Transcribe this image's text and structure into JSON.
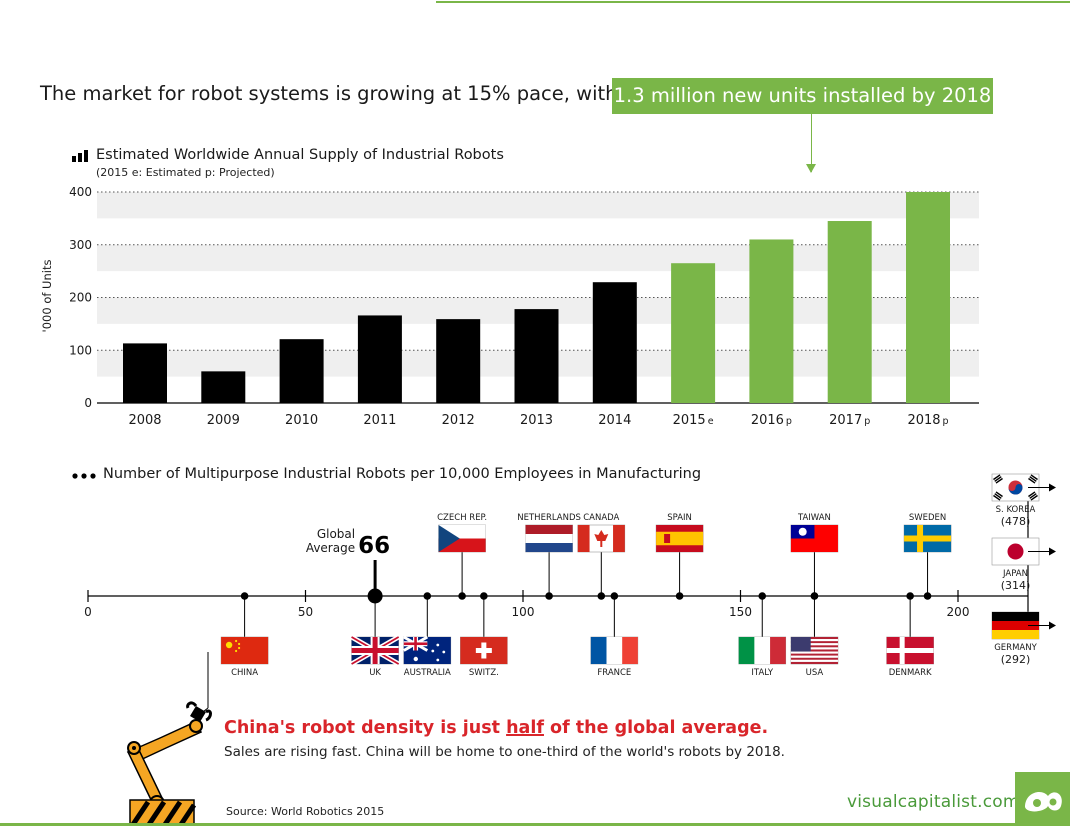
{
  "headline": {
    "text": "The market for robot systems is growing at 15% pace, with",
    "highlight": "1.3 million new units installed by 2018"
  },
  "chart_data": [
    {
      "type": "bar",
      "title": "Estimated Worldwide Annual Supply of Industrial Robots",
      "subtitle": "(2015  e: Estimated  p: Projected)",
      "ylabel": "'000 of Units",
      "ylim": [
        0,
        400
      ],
      "yticks": [
        0,
        100,
        200,
        300,
        400
      ],
      "grid": true,
      "categories": [
        "2008",
        "2009",
        "2010",
        "2011",
        "2012",
        "2013",
        "2014",
        "2015",
        "2016",
        "2017",
        "2018"
      ],
      "suffixes": [
        "",
        "",
        "",
        "",
        "",
        "",
        "",
        "e",
        "p",
        "p",
        "p"
      ],
      "values": [
        113,
        60,
        121,
        166,
        159,
        178,
        229,
        265,
        310,
        345,
        400
      ],
      "status": [
        "actual",
        "actual",
        "actual",
        "actual",
        "actual",
        "actual",
        "actual",
        "estimated",
        "projected",
        "projected",
        "projected"
      ],
      "colors": {
        "actual": "#000000",
        "forecast": "#7ab648",
        "band": "#efefef"
      }
    },
    {
      "type": "scatter",
      "title": "Number of Multipurpose Industrial Robots per 10,000 Employees in Manufacturing",
      "xlim": [
        0,
        200
      ],
      "xticks": [
        0,
        50,
        100,
        150,
        200
      ],
      "global_average": {
        "label_line1": "Global",
        "label_line2": "Average",
        "value": 66
      },
      "points": [
        {
          "country": "CHINA",
          "value": 36,
          "flag": "china",
          "side": "below"
        },
        {
          "country": "UK",
          "value": 66,
          "flag": "uk",
          "side": "below"
        },
        {
          "country": "AUSTRALIA",
          "value": 78,
          "flag": "australia",
          "side": "below"
        },
        {
          "country": "CZECH REP.",
          "value": 86,
          "flag": "czech",
          "side": "above"
        },
        {
          "country": "SWITZ.",
          "value": 91,
          "flag": "switzerland",
          "side": "below"
        },
        {
          "country": "NETHERLANDS",
          "value": 106,
          "flag": "netherlands",
          "side": "above"
        },
        {
          "country": "CANADA",
          "value": 118,
          "flag": "canada",
          "side": "above"
        },
        {
          "country": "FRANCE",
          "value": 121,
          "flag": "france",
          "side": "below"
        },
        {
          "country": "SPAIN",
          "value": 136,
          "flag": "spain",
          "side": "above"
        },
        {
          "country": "ITALY",
          "value": 155,
          "flag": "italy",
          "side": "below"
        },
        {
          "country": "TAIWAN",
          "value": 167,
          "flag": "taiwan",
          "side": "above"
        },
        {
          "country": "USA",
          "value": 167,
          "flag": "usa",
          "side": "below"
        },
        {
          "country": "DENMARK",
          "value": 189,
          "flag": "denmark",
          "side": "below"
        },
        {
          "country": "SWEDEN",
          "value": 193,
          "flag": "sweden",
          "side": "above"
        }
      ],
      "off_chart": [
        {
          "country": "S. KOREA",
          "value": "(478)",
          "flag": "korea"
        },
        {
          "country": "JAPAN",
          "value": "(314)",
          "flag": "japan"
        },
        {
          "country": "GERMANY",
          "value": "(292)",
          "flag": "germany"
        }
      ]
    }
  ],
  "callout": {
    "head_before": "China's robot density is just ",
    "head_emph": "half",
    "head_after": " of the global average.",
    "body": "Sales are rising fast. China will be home to one-third of the world's robots by 2018."
  },
  "source": "Source: World Robotics 2015",
  "brand": "visualcapitalist.com"
}
